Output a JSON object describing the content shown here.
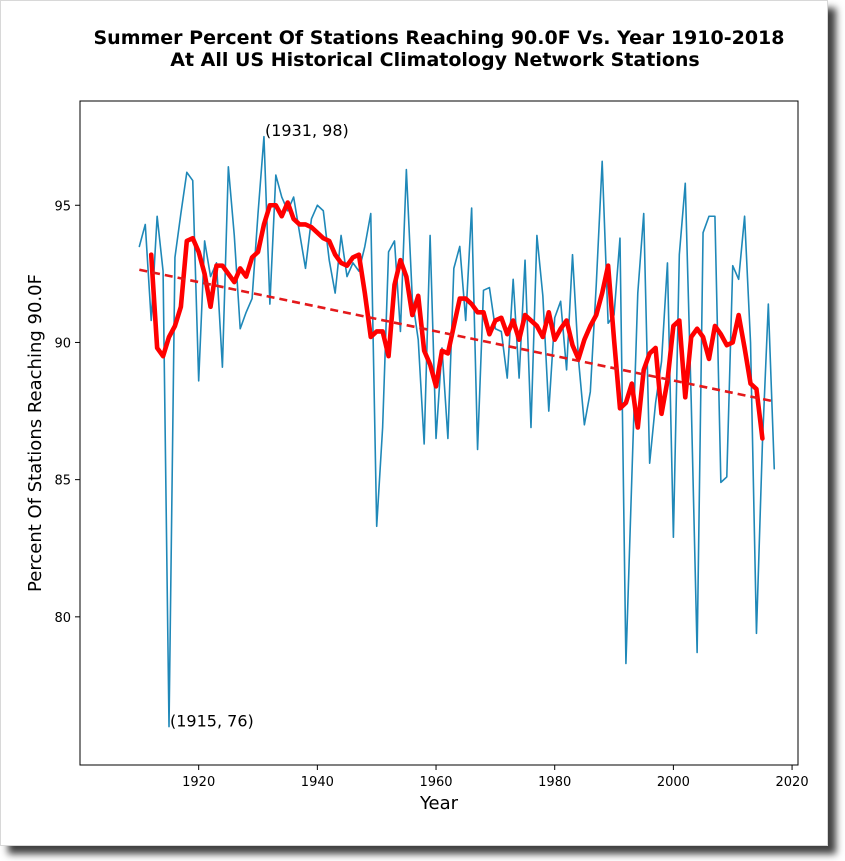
{
  "chart_data": {
    "type": "line",
    "title": "Summer Percent Of Stations Reaching 90.0F Vs. Year 1910-2018",
    "subtitle": "At All US Historical Climatology Network Stations",
    "xlabel": "Year",
    "ylabel": "Percent Of Stations Reaching 90.0F",
    "xlim": [
      1900,
      2021
    ],
    "ylim": [
      74.6,
      98.8
    ],
    "xticks": [
      1920,
      1940,
      1960,
      1980,
      2000,
      2020
    ],
    "yticks": [
      80,
      85,
      90,
      95
    ],
    "grid": false,
    "series": [
      {
        "style": "thin-line",
        "color": "#1f88b8",
        "x": [
          1910,
          1911,
          1912,
          1913,
          1914,
          1915,
          1916,
          1917,
          1918,
          1919,
          1920,
          1921,
          1922,
          1923,
          1924,
          1925,
          1926,
          1927,
          1928,
          1929,
          1930,
          1931,
          1932,
          1933,
          1934,
          1935,
          1936,
          1937,
          1938,
          1939,
          1940,
          1941,
          1942,
          1943,
          1944,
          1945,
          1946,
          1947,
          1948,
          1949,
          1950,
          1951,
          1952,
          1953,
          1954,
          1955,
          1956,
          1957,
          1958,
          1959,
          1960,
          1961,
          1962,
          1963,
          1964,
          1965,
          1966,
          1967,
          1968,
          1969,
          1970,
          1971,
          1972,
          1973,
          1974,
          1975,
          1976,
          1977,
          1978,
          1979,
          1980,
          1981,
          1982,
          1983,
          1984,
          1985,
          1986,
          1987,
          1988,
          1989,
          1990,
          1991,
          1992,
          1993,
          1994,
          1995,
          1996,
          1997,
          1998,
          1999,
          2000,
          2001,
          2002,
          2003,
          2004,
          2005,
          2006,
          2007,
          2008,
          2009,
          2010,
          2011,
          2012,
          2013,
          2014,
          2015,
          2016,
          2017
        ],
        "y": [
          93.5,
          94.3,
          90.8,
          94.6,
          92.6,
          76.0,
          93.1,
          94.7,
          96.2,
          95.9,
          88.6,
          93.7,
          92.4,
          92.9,
          89.1,
          96.4,
          93.9,
          90.5,
          91.1,
          91.6,
          94.7,
          97.5,
          91.4,
          96.1,
          95.3,
          94.8,
          95.3,
          94.0,
          92.7,
          94.5,
          95.0,
          94.8,
          93.0,
          91.8,
          93.9,
          92.4,
          92.9,
          92.6,
          93.5,
          94.7,
          83.3,
          86.9,
          93.3,
          93.7,
          90.4,
          96.3,
          91.6,
          90.1,
          86.3,
          93.9,
          86.5,
          89.8,
          86.5,
          92.7,
          93.5,
          90.8,
          94.9,
          86.1,
          91.9,
          92.0,
          90.5,
          90.4,
          88.7,
          92.3,
          88.7,
          93.0,
          86.9,
          93.9,
          91.7,
          87.5,
          90.9,
          91.5,
          89.0,
          93.2,
          89.4,
          87.0,
          88.2,
          92.1,
          96.6,
          90.7,
          91.0,
          93.8,
          78.3,
          85.1,
          91.8,
          94.7,
          85.6,
          87.8,
          89.3,
          92.9,
          82.9,
          93.2,
          95.8,
          87.9,
          78.7,
          94.0,
          94.6,
          94.6,
          84.9,
          85.1,
          92.8,
          92.3,
          94.6,
          90.0,
          79.4,
          86.3,
          91.4,
          85.4
        ]
      },
      {
        "style": "smoothed",
        "color": "#ff0000",
        "x": [
          1912,
          1913,
          1914,
          1915,
          1916,
          1917,
          1918,
          1919,
          1920,
          1921,
          1922,
          1923,
          1924,
          1925,
          1926,
          1927,
          1928,
          1929,
          1930,
          1931,
          1932,
          1933,
          1934,
          1935,
          1936,
          1937,
          1938,
          1939,
          1940,
          1941,
          1942,
          1943,
          1944,
          1945,
          1946,
          1947,
          1948,
          1949,
          1950,
          1951,
          1952,
          1953,
          1954,
          1955,
          1956,
          1957,
          1958,
          1959,
          1960,
          1961,
          1962,
          1963,
          1964,
          1965,
          1966,
          1967,
          1968,
          1969,
          1970,
          1971,
          1972,
          1973,
          1974,
          1975,
          1976,
          1977,
          1978,
          1979,
          1980,
          1981,
          1982,
          1983,
          1984,
          1985,
          1986,
          1987,
          1988,
          1989,
          1990,
          1991,
          1992,
          1993,
          1994,
          1995,
          1996,
          1997,
          1998,
          1999,
          2000,
          2001,
          2002,
          2003,
          2004,
          2005,
          2006,
          2007,
          2008,
          2009,
          2010,
          2011,
          2012,
          2013,
          2014,
          2015
        ],
        "y": [
          93.2,
          89.8,
          89.5,
          90.2,
          90.6,
          91.3,
          93.7,
          93.8,
          93.3,
          92.5,
          91.3,
          92.8,
          92.8,
          92.5,
          92.2,
          92.7,
          92.4,
          93.1,
          93.3,
          94.3,
          95.0,
          95.0,
          94.6,
          95.1,
          94.5,
          94.3,
          94.3,
          94.2,
          94.0,
          93.8,
          93.7,
          93.2,
          92.9,
          92.8,
          93.1,
          93.2,
          91.8,
          90.2,
          90.4,
          90.4,
          89.5,
          92.1,
          93.0,
          92.4,
          91.0,
          91.7,
          89.7,
          89.2,
          88.4,
          89.7,
          89.6,
          90.6,
          91.6,
          91.6,
          91.4,
          91.1,
          91.1,
          90.3,
          90.8,
          90.9,
          90.3,
          90.8,
          90.1,
          91.0,
          90.8,
          90.6,
          90.2,
          91.1,
          90.1,
          90.5,
          90.8,
          89.9,
          89.4,
          90.1,
          90.6,
          91.0,
          91.8,
          92.8,
          90.1,
          87.6,
          87.8,
          88.5,
          86.9,
          89.0,
          89.6,
          89.8,
          87.4,
          88.6,
          90.6,
          90.8,
          88.0,
          90.2,
          90.5,
          90.2,
          89.4,
          90.6,
          90.3,
          89.9,
          90.0,
          91.0,
          89.8,
          88.5,
          88.3,
          86.5
        ]
      },
      {
        "style": "dashed-trend",
        "color": "#e4191b",
        "x": [
          1910,
          2017
        ],
        "y": [
          92.65,
          87.85
        ]
      }
    ],
    "annotations": [
      {
        "text": "(1931, 98)",
        "x": 1931,
        "y": 97.6
      },
      {
        "text": "(1915, 76)",
        "x": 1915,
        "y": 76.0
      }
    ]
  }
}
